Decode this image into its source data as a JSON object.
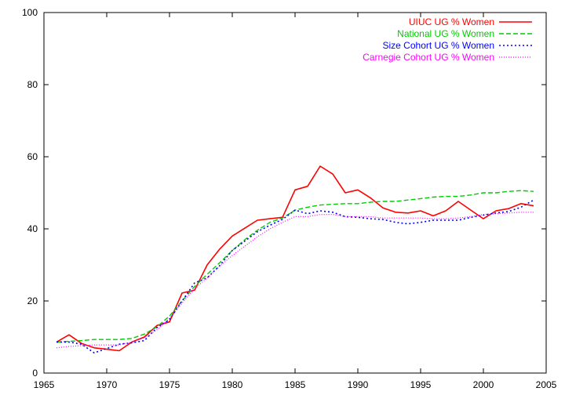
{
  "chart_data": {
    "type": "line",
    "title": "",
    "xlabel": "",
    "ylabel": "",
    "xlim": [
      1965,
      2005
    ],
    "ylim": [
      0,
      100
    ],
    "xticks": [
      1965,
      1970,
      1975,
      1980,
      1985,
      1990,
      1995,
      2000,
      2005
    ],
    "yticks": [
      0,
      20,
      40,
      60,
      80,
      100
    ],
    "grid": false,
    "legend_position": "top-right",
    "x": [
      1966,
      1967,
      1968,
      1969,
      1970,
      1971,
      1972,
      1973,
      1974,
      1975,
      1976,
      1977,
      1978,
      1979,
      1980,
      1981,
      1982,
      1983,
      1984,
      1985,
      1986,
      1987,
      1988,
      1989,
      1990,
      1991,
      1992,
      1993,
      1994,
      1995,
      1996,
      1997,
      1998,
      1999,
      2000,
      2001,
      2002,
      2003,
      2004
    ],
    "series": [
      {
        "name": "UIUC UG % Women",
        "color": "#ff0000",
        "dash": "solid",
        "values": [
          8.6,
          10.6,
          8.2,
          7.0,
          6.6,
          6.2,
          8.6,
          10.0,
          13.2,
          14.2,
          22.2,
          23.0,
          30.0,
          34.4,
          38.0,
          40.2,
          42.4,
          42.8,
          43.2,
          50.8,
          51.8,
          57.4,
          55.2,
          50.0,
          50.8,
          48.6,
          45.8,
          44.6,
          44.4,
          45.0,
          43.6,
          45.0,
          47.6,
          45.2,
          42.8,
          45.0,
          45.6,
          47.0,
          46.4
        ]
      },
      {
        "name": "National UG % Women",
        "color": "#00cc00",
        "dash": "dashed",
        "values": [
          8.6,
          8.8,
          9.0,
          9.3,
          9.3,
          9.3,
          9.6,
          10.8,
          12.8,
          15.8,
          20.0,
          24.0,
          27.4,
          30.6,
          34.0,
          37.0,
          39.6,
          41.8,
          43.0,
          45.2,
          46.0,
          46.6,
          46.8,
          47.0,
          47.0,
          47.4,
          47.6,
          47.6,
          48.0,
          48.4,
          48.8,
          49.0,
          49.0,
          49.4,
          50.0,
          50.0,
          50.4,
          50.6,
          50.4
        ]
      },
      {
        "name": "Size Cohort UG % Women",
        "color": "#0000ff",
        "dash": "dotted",
        "values": [
          8.6,
          8.6,
          8.0,
          5.6,
          6.8,
          8.0,
          8.4,
          9.0,
          12.6,
          14.8,
          20.0,
          25.0,
          26.4,
          29.8,
          34.0,
          36.6,
          39.2,
          41.0,
          42.6,
          45.2,
          44.2,
          45.0,
          44.6,
          43.4,
          43.2,
          42.8,
          42.6,
          41.8,
          41.4,
          41.8,
          42.4,
          42.4,
          42.4,
          43.2,
          43.8,
          44.4,
          44.8,
          46.0,
          48.0
        ]
      },
      {
        "name": "Carnegie Cohort UG % Women",
        "color": "#ff00ff",
        "dash": "dotted-fine",
        "values": [
          7.0,
          7.4,
          7.6,
          7.8,
          7.8,
          7.8,
          8.6,
          9.8,
          12.0,
          15.2,
          19.4,
          23.4,
          26.4,
          29.6,
          32.6,
          35.2,
          37.8,
          40.0,
          41.8,
          43.4,
          43.4,
          44.0,
          44.0,
          43.4,
          43.4,
          43.4,
          43.0,
          43.0,
          43.0,
          43.0,
          42.8,
          42.8,
          43.0,
          43.4,
          44.0,
          44.2,
          44.4,
          44.6,
          44.6
        ]
      }
    ]
  }
}
